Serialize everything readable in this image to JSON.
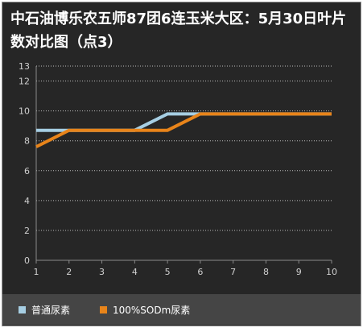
{
  "title": "中石油博乐农五师87团6连玉米大区：5月30日叶片数对比图（点3）",
  "chart_data": {
    "type": "line",
    "title": "中石油博乐农五师87团6连玉米大区：5月30日叶片数对比图（点3）",
    "x": [
      1,
      2,
      3,
      4,
      5,
      6,
      7,
      8,
      9,
      10
    ],
    "xlim": [
      1,
      10
    ],
    "ylim": [
      0,
      13
    ],
    "y_ticks": [
      0,
      2,
      4,
      6,
      8,
      10,
      12,
      13
    ],
    "grid": "horizontal dotted",
    "legend_position": "bottom",
    "series": [
      {
        "name": "普通尿素",
        "color": "#a6cee3",
        "values": [
          8.7,
          8.7,
          8.7,
          8.7,
          9.8,
          9.8,
          9.8,
          9.8,
          9.8,
          9.8
        ]
      },
      {
        "name": "100%SODm尿素",
        "color": "#e8841a",
        "values": [
          7.6,
          8.7,
          8.7,
          8.7,
          8.7,
          9.8,
          9.8,
          9.8,
          9.8,
          9.8
        ]
      }
    ]
  }
}
